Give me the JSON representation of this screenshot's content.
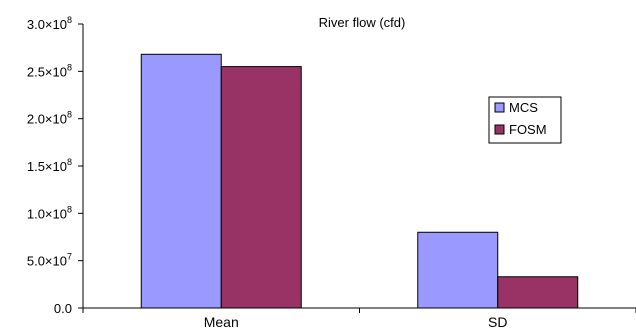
{
  "chart_data": {
    "type": "bar",
    "title": "River flow (cfd)",
    "xlabel": "",
    "ylabel": "",
    "categories": [
      "Mean",
      "SD"
    ],
    "series": [
      {
        "name": "MCS",
        "values": [
          268000000,
          80000000
        ],
        "color": "#9999ff"
      },
      {
        "name": "FOSM",
        "values": [
          255000000,
          33000000
        ],
        "color": "#993366"
      }
    ],
    "ylim": [
      0,
      300000000
    ],
    "yticks": [
      {
        "value": 0,
        "mantissa": "0.0",
        "exponent": ""
      },
      {
        "value": 50000000,
        "mantissa": "5.0×10",
        "exponent": "7"
      },
      {
        "value": 100000000,
        "mantissa": "1.0×10",
        "exponent": "8"
      },
      {
        "value": 150000000,
        "mantissa": "1.5×10",
        "exponent": "8"
      },
      {
        "value": 200000000,
        "mantissa": "2.0×10",
        "exponent": "8"
      },
      {
        "value": 250000000,
        "mantissa": "2.5×10",
        "exponent": "8"
      },
      {
        "value": 300000000,
        "mantissa": "3.0×10",
        "exponent": "8"
      }
    ],
    "grid": false,
    "legend_position": "right"
  }
}
